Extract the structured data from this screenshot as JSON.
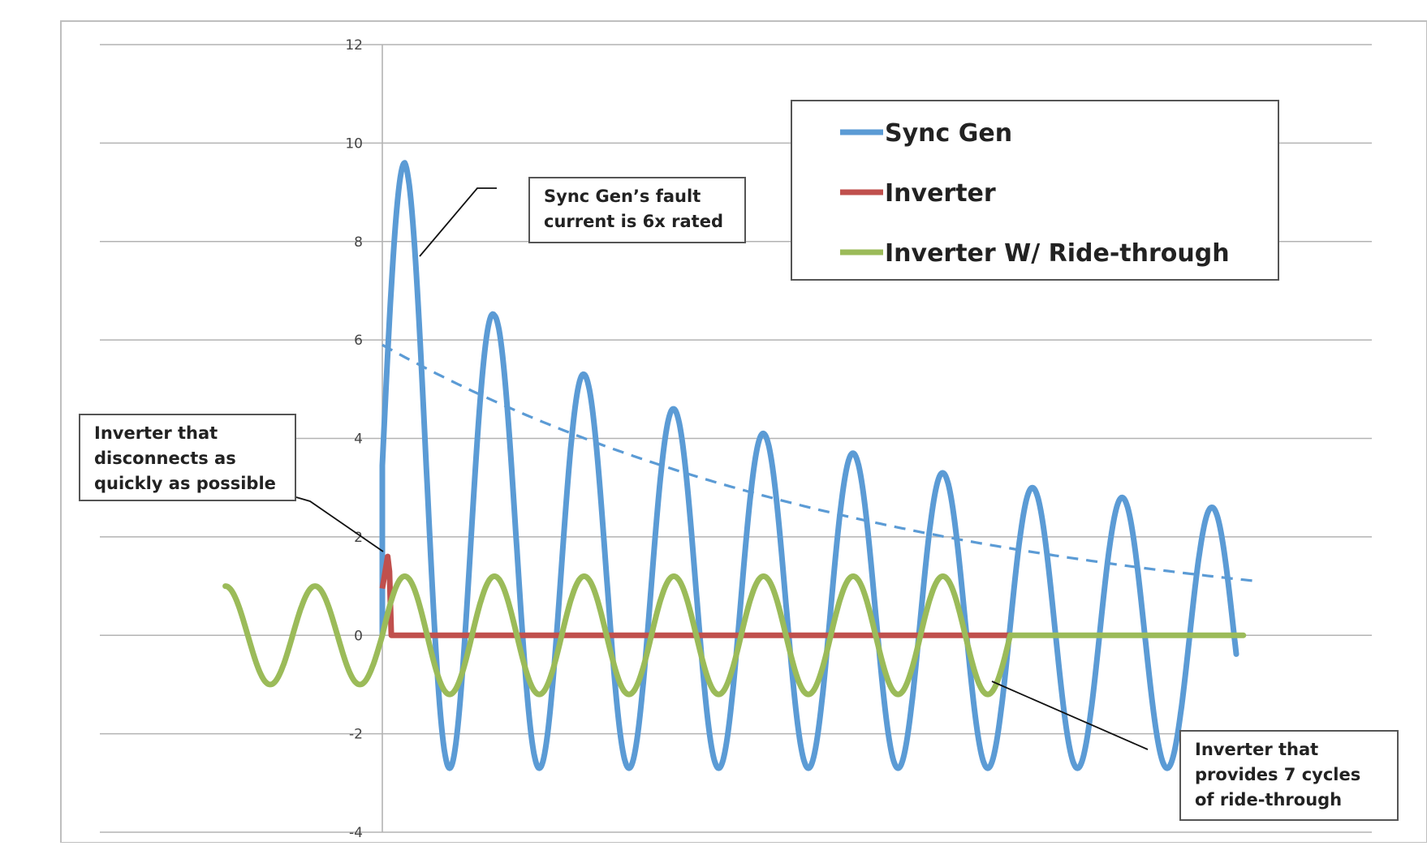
{
  "chart_data": {
    "type": "line",
    "title": "",
    "xlabel": "",
    "ylabel": "",
    "ylim": [
      -4,
      12
    ],
    "y_ticks": [
      "12",
      "10",
      "8",
      "6",
      "4",
      "2",
      "0",
      "-2",
      "-4"
    ],
    "grid": "horizontal",
    "legend_placement": "top-right",
    "series": [
      {
        "name": "Sync Gen",
        "color": "#5b9bd5",
        "description": "offset-decaying sinusoidal fault current starting at the fault (t=0)",
        "peaks": [
          9.6,
          6.5,
          5.3,
          4.6,
          4.1,
          3.7,
          3.3,
          3.0,
          2.8,
          2.6
        ],
        "troughs": [
          -2.7,
          -2.7,
          -2.7,
          -2.7,
          -2.7,
          -2.7,
          -2.7,
          -2.7,
          -2.7
        ]
      },
      {
        "name": "Sync Gen envelope",
        "color": "#5b9bd5",
        "style": "dashed",
        "start_value": 5.9,
        "end_value": 1.1
      },
      {
        "name": "Inverter",
        "color": "#c0504d",
        "peak": 1.6,
        "value_after_disconnect": 0
      },
      {
        "name": "Inverter W/ Ride-through",
        "color": "#9bbb59",
        "amplitude_prefault": 1.0,
        "amplitude_fault": 1.2,
        "cycles_ride_through": 7
      }
    ],
    "annotations": [
      {
        "id": "sync",
        "lines": [
          "Sync Gen’s fault",
          "current is 6x rated"
        ]
      },
      {
        "id": "inv",
        "lines": [
          "Inverter that",
          "disconnects as",
          "quickly as possible"
        ]
      },
      {
        "id": "ride",
        "lines": [
          "Inverter that",
          "provides 7 cycles",
          "of ride-through"
        ]
      }
    ]
  }
}
